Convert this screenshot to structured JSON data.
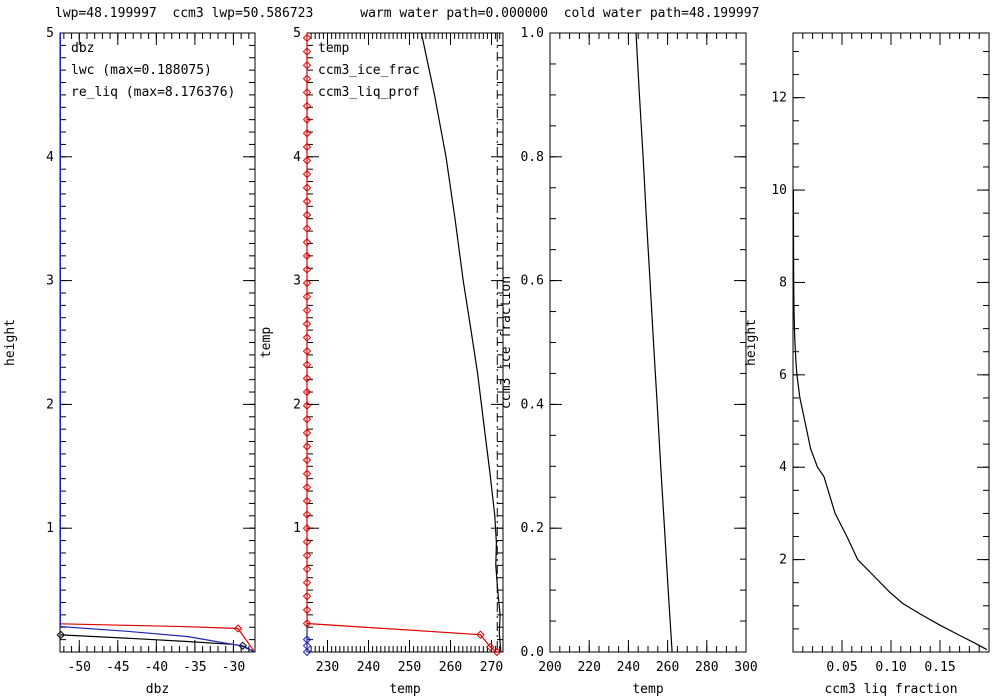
{
  "title": "lwp=48.199997  ccm3 lwp=50.586723      warm water path=0.000000  cold water path=48.199997",
  "colors": {
    "black": "#000000",
    "red": "#e00000",
    "blue": "#2222bb",
    "background": "#ffffff"
  },
  "chart_data": [
    {
      "id": "dbz-profile",
      "type": "line",
      "xlabel": "dbz",
      "ylabel": "height",
      "xlim": [
        -52.5,
        -27.2
      ],
      "ylim": [
        0,
        5
      ],
      "xticks": {
        "labels": [
          {
            "v": -50,
            "l": "-50"
          },
          {
            "v": -45,
            "l": "-45"
          },
          {
            "v": -40,
            "l": "-40"
          },
          {
            "v": -35,
            "l": "-35"
          },
          {
            "v": -30,
            "l": "-30"
          }
        ],
        "minor_step": 1
      },
      "yticks": {
        "labels": [
          {
            "v": 1,
            "l": "1"
          },
          {
            "v": 2,
            "l": "2"
          },
          {
            "v": 3,
            "l": "3"
          },
          {
            "v": 4,
            "l": "4"
          },
          {
            "v": 5,
            "l": "5"
          }
        ],
        "minor_step": 0.1
      },
      "legend": [
        {
          "label": "dbz",
          "color": "black"
        },
        {
          "label": "lwc (max=0.188075)",
          "color": "red"
        },
        {
          "label": "re_liq (max=8.176376)",
          "color": "blue"
        }
      ],
      "series": [
        {
          "name": "dbz",
          "color": "black",
          "points": [
            [
              -52.4,
              0.138
            ],
            [
              -44,
              0.112
            ],
            [
              -36,
              0.085
            ],
            [
              -30.2,
              0.062
            ],
            [
              -28.8,
              0.05
            ],
            [
              -27.35,
              0.004
            ]
          ],
          "marker_points": [
            [
              -52.4,
              0.138
            ],
            [
              -28.8,
              0.05
            ]
          ]
        },
        {
          "name": "lwc",
          "color": "red",
          "points": [
            [
              -52.4,
              0.228
            ],
            [
              -44,
              0.216
            ],
            [
              -36,
              0.204
            ],
            [
              -29.4,
              0.19
            ],
            [
              -27.35,
              0.01
            ]
          ],
          "marker_points": [
            [
              -29.4,
              0.19
            ]
          ]
        },
        {
          "name": "re_liq",
          "color": "blue",
          "points": [
            [
              -52.45,
              5
            ],
            [
              -52.45,
              0.205
            ],
            [
              -44,
              0.168
            ],
            [
              -36,
              0.125
            ],
            [
              -29,
              0.05
            ],
            [
              -27.35,
              0.004
            ]
          ]
        }
      ],
      "reflines": []
    },
    {
      "id": "temp-profile",
      "type": "line",
      "xlabel": "temp",
      "ylabel": "temp",
      "xlim": [
        225,
        272.8
      ],
      "ylim": [
        0,
        5
      ],
      "xticks": {
        "labels": [
          {
            "v": 230,
            "l": "230"
          },
          {
            "v": 240,
            "l": "240"
          },
          {
            "v": 250,
            "l": "250"
          },
          {
            "v": 260,
            "l": "260"
          },
          {
            "v": 270,
            "l": "270"
          }
        ],
        "minor_step": 1
      },
      "yticks": {
        "labels": [
          {
            "v": 1,
            "l": "1"
          },
          {
            "v": 2,
            "l": "2"
          },
          {
            "v": 3,
            "l": "3"
          },
          {
            "v": 4,
            "l": "4"
          },
          {
            "v": 5,
            "l": "5"
          }
        ],
        "minor_step": 0.1
      },
      "legend": [
        {
          "label": "temp",
          "color": "black"
        },
        {
          "label": "ccm3_ice_frac",
          "color": "blue"
        },
        {
          "label": "ccm3_liq_prof",
          "color": "red"
        }
      ],
      "series": [
        {
          "name": "temp",
          "color": "black",
          "points": [
            [
              252.9,
              5
            ],
            [
              256.1,
              4.5
            ],
            [
              258.9,
              4
            ],
            [
              261.1,
              3.5
            ],
            [
              263.1,
              3
            ],
            [
              265.0,
              2.6
            ],
            [
              266.6,
              2.25
            ],
            [
              268.1,
              1.85
            ],
            [
              269.6,
              1.45
            ],
            [
              270.8,
              1.1
            ],
            [
              271.2,
              0.88
            ],
            [
              271.05,
              0.7
            ],
            [
              271.5,
              0.5
            ],
            [
              272.1,
              0.3
            ],
            [
              271.9,
              0.15
            ],
            [
              272.3,
              0.0
            ]
          ]
        },
        {
          "name": "ccm3_ice_frac",
          "color": "blue",
          "points": [
            [
              225,
              0.14
            ],
            [
              225,
              0
            ]
          ],
          "marker_run": {
            "x": 225,
            "from": 0,
            "to": 0.14,
            "step": 0.05
          }
        },
        {
          "name": "ccm3_liq_prof",
          "color": "red",
          "points": [
            [
              225,
              5
            ],
            [
              225,
              0.23
            ],
            [
              267.3,
              0.14
            ],
            [
              269.7,
              0.04
            ],
            [
              271.3,
              0.0
            ]
          ],
          "marker_points": [
            [
              267.3,
              0.14
            ],
            [
              269.7,
              0.04
            ],
            [
              271.3,
              0.0
            ]
          ],
          "marker_run": {
            "x": 225,
            "from": 0.23,
            "to": 5,
            "step": 0.11
          }
        }
      ],
      "reflines": [
        {
          "x": 271.4,
          "style": "dashdot"
        }
      ]
    },
    {
      "id": "ice-fraction-vs-temp",
      "type": "line",
      "xlabel": "temp",
      "ylabel": "ccm3 ice fraction",
      "xlim": [
        200,
        300
      ],
      "ylim": [
        0,
        1
      ],
      "xticks": {
        "labels": [
          {
            "v": 200,
            "l": "200"
          },
          {
            "v": 220,
            "l": "220"
          },
          {
            "v": 240,
            "l": "240"
          },
          {
            "v": 260,
            "l": "260"
          },
          {
            "v": 280,
            "l": "280"
          },
          {
            "v": 300,
            "l": "300"
          }
        ],
        "minor_step": 5
      },
      "yticks": {
        "labels": [
          {
            "v": 0,
            "l": "0.0"
          },
          {
            "v": 0.2,
            "l": "0.2"
          },
          {
            "v": 0.4,
            "l": "0.4"
          },
          {
            "v": 0.6,
            "l": "0.6"
          },
          {
            "v": 0.8,
            "l": "0.8"
          },
          {
            "v": 1.0,
            "l": "1.0"
          }
        ],
        "minor_step": 0.05
      },
      "legend": [],
      "series": [
        {
          "name": "ccm3_ice_fraction",
          "color": "black",
          "points": [
            [
              243.9,
              1.0
            ],
            [
              245.6,
              0.9
            ],
            [
              247.5,
              0.8
            ],
            [
              249.2,
              0.7
            ],
            [
              251.0,
              0.6
            ],
            [
              252.8,
              0.5
            ],
            [
              254.7,
              0.4
            ],
            [
              256.5,
              0.3
            ],
            [
              258.4,
              0.2
            ],
            [
              260.3,
              0.1
            ],
            [
              262.3,
              0.0
            ]
          ]
        }
      ],
      "reflines": []
    },
    {
      "id": "liq-fraction-profile",
      "type": "line",
      "xlabel": "ccm3 liq fraction",
      "ylabel": "height",
      "xlim": [
        0,
        0.2
      ],
      "ylim": [
        0,
        13.4
      ],
      "xticks": {
        "labels": [
          {
            "v": 0.05,
            "l": "0.05"
          },
          {
            "v": 0.1,
            "l": "0.10"
          },
          {
            "v": 0.15,
            "l": "0.15"
          }
        ],
        "minor_step": 0.01
      },
      "yticks": {
        "labels": [
          {
            "v": 2,
            "l": "2"
          },
          {
            "v": 4,
            "l": "4"
          },
          {
            "v": 6,
            "l": "6"
          },
          {
            "v": 8,
            "l": "8"
          },
          {
            "v": 10,
            "l": "10"
          },
          {
            "v": 12,
            "l": "12"
          }
        ],
        "minor_step": 0.5
      },
      "legend": [],
      "series": [
        {
          "name": "ccm3_liq_fraction",
          "color": "black",
          "points": [
            [
              0.0004,
              10.0
            ],
            [
              0.0005,
              9.0
            ],
            [
              0.0007,
              8.0
            ],
            [
              0.001,
              7.4
            ],
            [
              0.0017,
              6.8
            ],
            [
              0.003,
              6.3
            ],
            [
              0.004,
              6.0
            ],
            [
              0.007,
              5.5
            ],
            [
              0.012,
              5.0
            ],
            [
              0.018,
              4.4
            ],
            [
              0.025,
              4.0
            ],
            [
              0.0315,
              3.8
            ],
            [
              0.043,
              3.0
            ],
            [
              0.055,
              2.5
            ],
            [
              0.066,
              2.0
            ],
            [
              0.08,
              1.7
            ],
            [
              0.0985,
              1.3
            ],
            [
              0.112,
              1.05
            ],
            [
              0.13,
              0.82
            ],
            [
              0.15,
              0.58
            ],
            [
              0.17,
              0.36
            ],
            [
              0.185,
              0.2
            ],
            [
              0.198,
              0.05
            ]
          ]
        }
      ],
      "reflines": []
    }
  ]
}
